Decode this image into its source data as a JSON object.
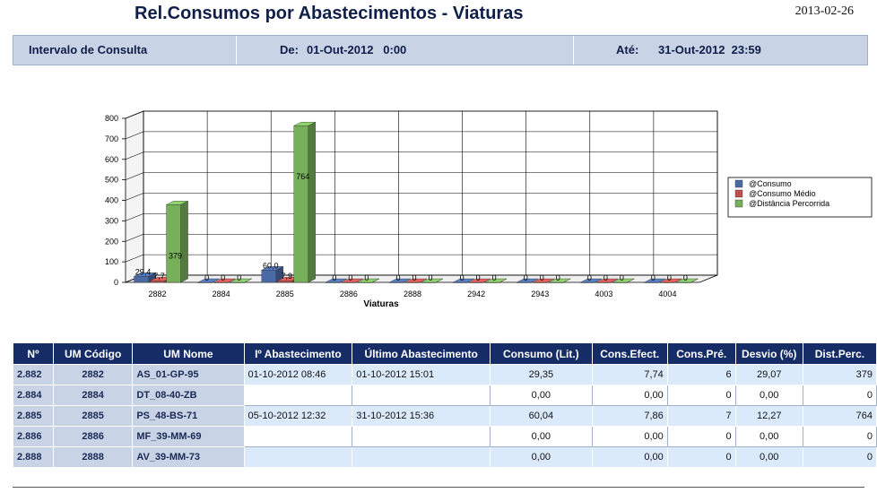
{
  "header": {
    "title": "Rel.Consumos por Abastecimentos - Viaturas",
    "date": "2013-02-26"
  },
  "interval": {
    "label": "Intervalo de Consulta",
    "from_label": "De:",
    "from_value": "01-Out-2012   0:00",
    "to_label": "Até:",
    "to_value": "31-Out-2012  23:59"
  },
  "chart_data": {
    "type": "bar",
    "xlabel": "Viaturas",
    "ylim": [
      0,
      800
    ],
    "yticks": [
      0,
      100,
      200,
      300,
      400,
      500,
      600,
      700,
      800
    ],
    "categories": [
      "2882",
      "2884",
      "2885",
      "2886",
      "2888",
      "2942",
      "2943",
      "4003",
      "4004"
    ],
    "series": [
      {
        "name": "@Consumo",
        "color": "#4a6aa5",
        "values": [
          29.35,
          0,
          60.04,
          0,
          0,
          0,
          0,
          0,
          0
        ],
        "labels": [
          "29,4",
          "0",
          "60,0",
          "0",
          "0",
          "0",
          "0",
          "0",
          "0"
        ]
      },
      {
        "name": "@Consumo Médio",
        "color": "#c0504d",
        "values": [
          7.74,
          0,
          7.86,
          0,
          0,
          0,
          0,
          0,
          0
        ],
        "labels": [
          "7,7",
          "0",
          "7,9",
          "0",
          "0",
          "0",
          "0",
          "0",
          "0"
        ]
      },
      {
        "name": "@Distância Percorrida",
        "color": "#77b05a",
        "values": [
          379,
          0,
          764,
          0,
          0,
          0,
          0,
          0,
          0
        ],
        "labels": [
          "379",
          "0",
          "764",
          "0",
          "0",
          "0",
          "0",
          "0",
          "0"
        ]
      }
    ],
    "legend_position": "right",
    "grid": true
  },
  "table": {
    "columns": [
      "Nº",
      "UM Código",
      "UM Nome",
      "Iº Abastecimento",
      "Último Abastecimento",
      "Consumo (Lit.)",
      "Cons.Efect.",
      "Cons.Pré.",
      "Desvio (%)",
      "Dist.Perc."
    ],
    "rows": [
      [
        "2.882",
        "2882",
        "AS_01-GP-95",
        "01-10-2012  08:46",
        "01-10-2012  15:01",
        "29,35",
        "7,74",
        "6",
        "29,07",
        "379"
      ],
      [
        "2.884",
        "2884",
        "DT_08-40-ZB",
        "",
        "",
        "0,00",
        "0,00",
        "0",
        "0,00",
        "0"
      ],
      [
        "2.885",
        "2885",
        "PS_48-BS-71",
        "05-10-2012  12:32",
        "31-10-2012  15:36",
        "60,04",
        "7,86",
        "7",
        "12,27",
        "764"
      ],
      [
        "2.886",
        "2886",
        "MF_39-MM-69",
        "",
        "",
        "0,00",
        "0,00",
        "0",
        "0,00",
        "0"
      ],
      [
        "2.888",
        "2888",
        "AV_39-MM-73",
        "",
        "",
        "0,00",
        "0,00",
        "0",
        "0,00",
        "0"
      ]
    ]
  }
}
